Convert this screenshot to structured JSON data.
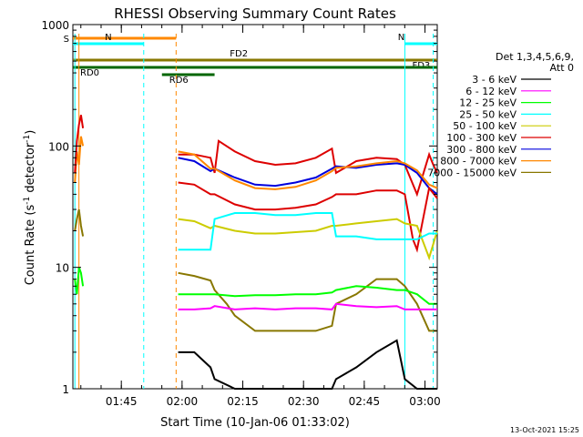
{
  "chart_data": {
    "type": "line",
    "title": "RHESSI Observing Summary Count Rates",
    "xlabel": "Start Time (10-Jan-06 01:33:02)",
    "ylabel_main": "Count Rate (s",
    "ylabel_sup1": "-1",
    "ylabel_mid": " detector",
    "ylabel_sup2": "-1",
    "ylabel_end": ")",
    "x_range_minutes": [
      0,
      90
    ],
    "x_range_labels": [
      "01:33:02",
      "03:03"
    ],
    "y_range": [
      1,
      1000
    ],
    "y_scale": "log",
    "x_ticks": [
      {
        "label": "01:45",
        "minute": 11.97
      },
      {
        "label": "02:00",
        "minute": 26.97
      },
      {
        "label": "02:15",
        "minute": 41.97
      },
      {
        "label": "02:30",
        "minute": 56.97
      },
      {
        "label": "02:45",
        "minute": 71.97
      },
      {
        "label": "03:00",
        "minute": 86.97
      }
    ],
    "y_ticks": [
      {
        "label": "1",
        "value": 1
      },
      {
        "label": "10",
        "value": 10
      },
      {
        "label": "100",
        "value": 100
      },
      {
        "label": "1000",
        "value": 1000
      }
    ],
    "legend": {
      "header1": "Det 1,3,4,5,6,9,",
      "header2": "Att 0",
      "placement": "right",
      "items": [
        {
          "label": "3 - 6 keV",
          "color": "#000000"
        },
        {
          "label": "6 - 12 keV",
          "color": "#ff00ff"
        },
        {
          "label": "12 - 25 keV",
          "color": "#00ff00"
        },
        {
          "label": "25 - 50 keV",
          "color": "#00ffff"
        },
        {
          "label": "50 - 100 keV",
          "color": "#cccc00"
        },
        {
          "label": "100 - 300 keV",
          "color": "#dd0000"
        },
        {
          "label": "300 - 800 keV",
          "color": "#0000dd"
        },
        {
          "label": "800 - 7000 keV",
          "color": "#ff8800"
        },
        {
          "label": "7000 - 15000 keV",
          "color": "#887700"
        }
      ]
    },
    "flag_bars": [
      {
        "label": "S",
        "color": "#ff8800",
        "start_minute": 0,
        "end_minute": 25.5
      },
      {
        "label": "N",
        "color": "#00ffff",
        "start_minute": 0,
        "end_minute": 17.5
      },
      {
        "label": "N",
        "color": "#00ffff",
        "start_minute": 82,
        "end_minute": 90
      },
      {
        "label": "FD2",
        "color": "#887700",
        "start_minute": 0,
        "end_minute": 82
      },
      {
        "label": "FD3",
        "color": "#887700",
        "start_minute": 82,
        "end_minute": 90
      },
      {
        "label": "RD0",
        "color": "#006600",
        "start_minute": 0,
        "end_minute": 90
      },
      {
        "label": "RD6",
        "color": "#006600",
        "start_minute": 22,
        "end_minute": 35
      }
    ],
    "vertical_markers": [
      {
        "color": "#00ffff",
        "minute": 0.5,
        "style": "solid"
      },
      {
        "color": "#ff8800",
        "minute": 1.5,
        "style": "solid"
      },
      {
        "color": "#00ffff",
        "minute": 17.5,
        "style": "dashed"
      },
      {
        "color": "#ff8800",
        "minute": 25.5,
        "style": "dashed"
      },
      {
        "color": "#00ffff",
        "minute": 82,
        "style": "solid"
      },
      {
        "color": "#00ffff",
        "minute": 89,
        "style": "dashed"
      }
    ],
    "series": [
      {
        "color": "#dd0000",
        "x": [
          26,
          30,
          34,
          35,
          36,
          40,
          45,
          50,
          55,
          60,
          64,
          65,
          70,
          75,
          80,
          82,
          85,
          88,
          89,
          90
        ],
        "y": [
          85,
          85,
          80,
          60,
          110,
          90,
          75,
          70,
          72,
          80,
          95,
          60,
          75,
          80,
          78,
          70,
          40,
          85,
          70,
          60
        ]
      },
      {
        "color": "#0000dd",
        "x": [
          26,
          30,
          34,
          35,
          40,
          45,
          50,
          55,
          60,
          64,
          65,
          70,
          75,
          80,
          82,
          85,
          88,
          90
        ],
        "y": [
          80,
          75,
          62,
          65,
          55,
          48,
          47,
          50,
          55,
          65,
          68,
          66,
          70,
          72,
          70,
          60,
          45,
          40
        ]
      },
      {
        "color": "#ff8800",
        "x": [
          26,
          30,
          34,
          35,
          40,
          45,
          50,
          55,
          60,
          64,
          65,
          70,
          75,
          80,
          82,
          85,
          88,
          90
        ],
        "y": [
          90,
          85,
          65,
          65,
          52,
          45,
          44,
          46,
          52,
          62,
          66,
          68,
          72,
          75,
          72,
          63,
          48,
          45
        ]
      },
      {
        "color": "#dd0000",
        "x": [
          26,
          30,
          34,
          35,
          40,
          45,
          50,
          55,
          60,
          64,
          65,
          70,
          75,
          80,
          82,
          84,
          85,
          88,
          90
        ],
        "y": [
          50,
          48,
          40,
          40,
          33,
          30,
          30,
          31,
          33,
          38,
          40,
          40,
          43,
          43,
          40,
          17,
          14,
          45,
          37
        ]
      },
      {
        "color": "#cccc00",
        "x": [
          26,
          30,
          34,
          35,
          40,
          45,
          50,
          55,
          60,
          64,
          65,
          70,
          75,
          80,
          82,
          85,
          88,
          90
        ],
        "y": [
          25,
          24,
          21,
          22,
          20,
          19,
          19,
          19.5,
          20,
          22,
          22,
          23,
          24,
          25,
          23,
          22,
          12,
          20
        ]
      },
      {
        "color": "#00ffff",
        "x": [
          26,
          30,
          34,
          35,
          40,
          45,
          50,
          55,
          60,
          64,
          65,
          70,
          75,
          80,
          82,
          85,
          88,
          90
        ],
        "y": [
          14,
          14,
          14,
          25,
          28,
          28,
          27,
          27,
          28,
          28,
          18,
          18,
          17,
          17,
          17,
          17,
          19,
          19
        ]
      },
      {
        "color": "#887700",
        "x": [
          26,
          30,
          34,
          35,
          38,
          40,
          45,
          50,
          55,
          60,
          64,
          65,
          70,
          75,
          80,
          82,
          85,
          88,
          90
        ],
        "y": [
          9,
          8.5,
          7.8,
          6.5,
          5,
          4,
          3,
          3,
          3,
          3,
          3.3,
          5,
          6,
          8,
          8,
          7,
          5,
          3,
          3
        ]
      },
      {
        "color": "#00ff00",
        "x": [
          26,
          30,
          34,
          35,
          40,
          45,
          50,
          55,
          60,
          64,
          65,
          70,
          75,
          80,
          82,
          85,
          88,
          90
        ],
        "y": [
          6,
          6,
          6,
          6,
          5.8,
          5.9,
          5.9,
          6,
          6,
          6.2,
          6.5,
          7,
          6.8,
          6.5,
          6.5,
          6,
          5,
          5
        ]
      },
      {
        "color": "#ff00ff",
        "x": [
          26,
          30,
          34,
          35,
          40,
          45,
          50,
          55,
          60,
          64,
          65,
          70,
          75,
          80,
          82,
          85,
          88,
          90
        ],
        "y": [
          4.5,
          4.5,
          4.6,
          4.8,
          4.5,
          4.6,
          4.5,
          4.6,
          4.6,
          4.5,
          5,
          4.8,
          4.7,
          4.8,
          4.5,
          4.5,
          4.5,
          4.5
        ]
      },
      {
        "color": "#000000",
        "x": [
          26,
          30,
          34,
          35,
          40,
          45,
          50,
          55,
          60,
          64,
          65,
          70,
          75,
          80,
          82,
          85,
          88,
          90
        ],
        "y": [
          2,
          2,
          1.5,
          1.2,
          1,
          1,
          1,
          1,
          1,
          1,
          1.2,
          1.5,
          2,
          2.5,
          1.2,
          1,
          1,
          1
        ]
      },
      {
        "color": "#ff8800",
        "x": [
          0.5,
          1,
          1.5,
          2,
          2.5
        ],
        "y": [
          50,
          90,
          70,
          120,
          100
        ]
      },
      {
        "color": "#dd0000",
        "x": [
          0.5,
          1,
          1.5,
          2,
          2.5
        ],
        "y": [
          60,
          110,
          150,
          180,
          140
        ]
      },
      {
        "color": "#00ff00",
        "x": [
          0.5,
          1,
          1.5,
          2,
          2.5
        ],
        "y": [
          8,
          6,
          10,
          9,
          7
        ]
      },
      {
        "color": "#887700",
        "x": [
          0.5,
          1,
          1.5,
          2,
          2.5
        ],
        "y": [
          20,
          25,
          30,
          22,
          18
        ]
      }
    ],
    "footer_date": "13-Oct-2021 15:25"
  }
}
